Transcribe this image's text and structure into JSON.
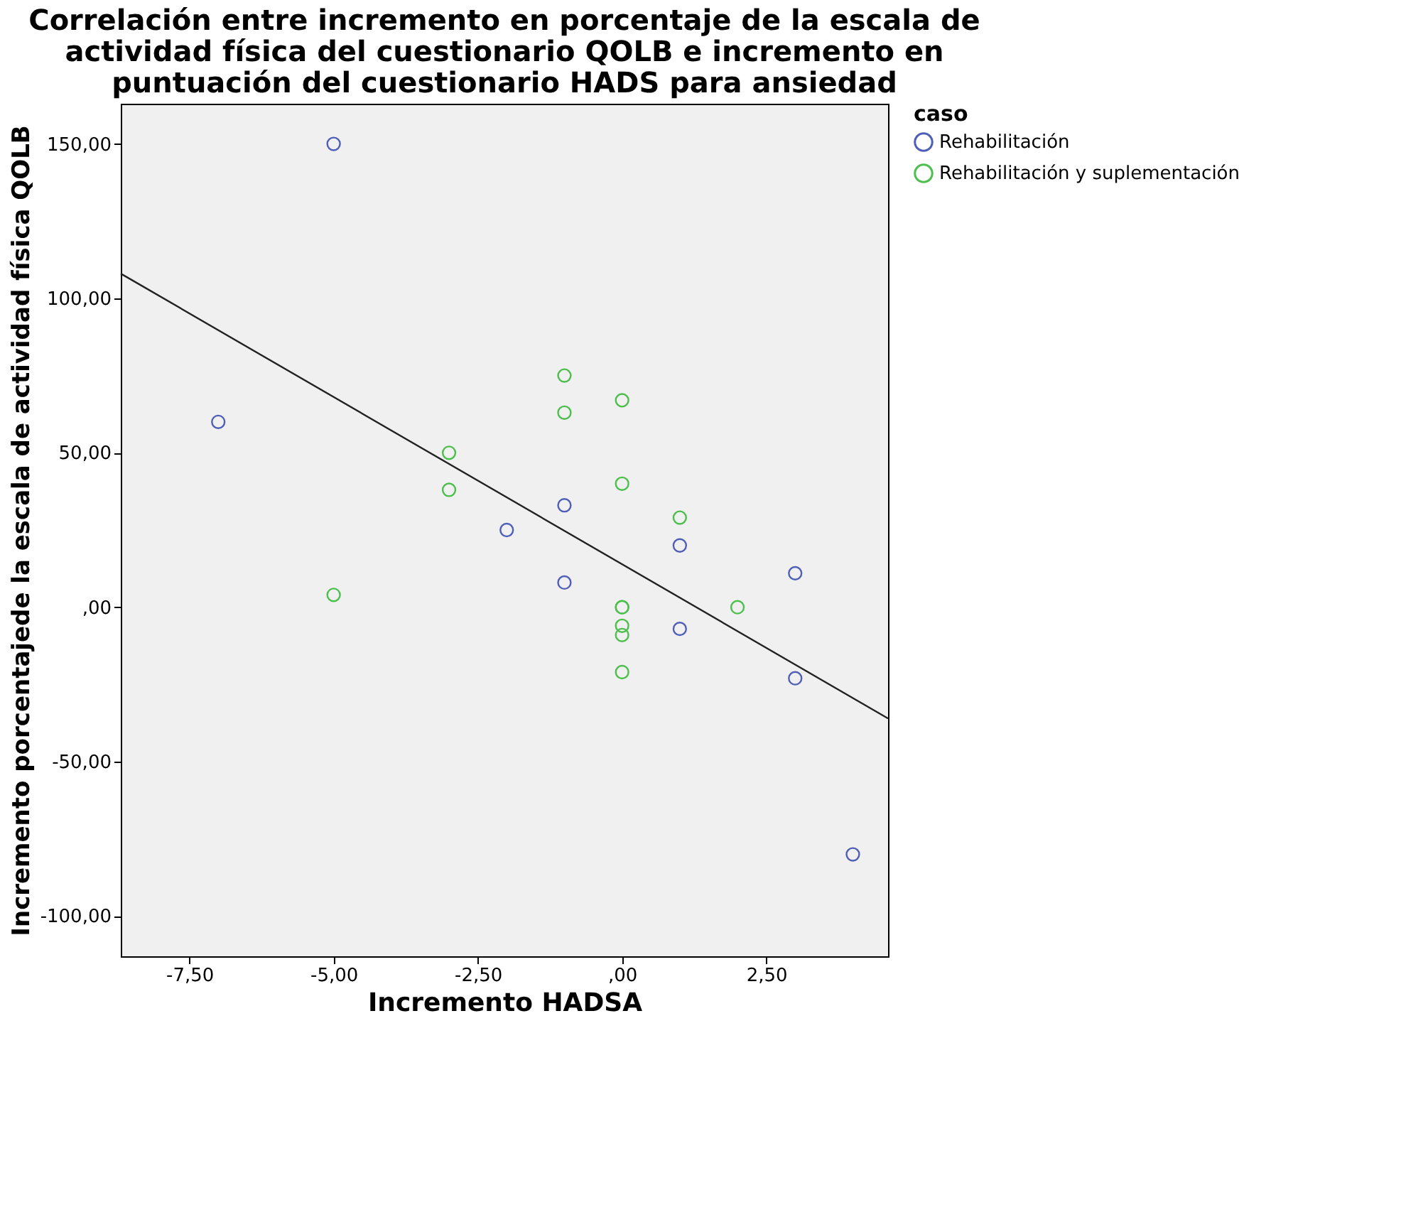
{
  "chart_data": {
    "type": "scatter",
    "title": "Correlación entre incremento en porcentaje de la escala de actividad física del cuestionario QOLB e incremento en puntuación del cuestionario HADS para ansiedad",
    "xlabel": "Incremento HADSA",
    "ylabel": "Incremento porcentajede la escala de actividad física QOLB",
    "legend_title": "caso",
    "legend": "top right",
    "grid": false,
    "marker": "circle",
    "xlim": [
      -8.69,
      4.61
    ],
    "ylim": [
      -113,
      163
    ],
    "xticks": [
      {
        "value": -7.5,
        "label": "-7,50"
      },
      {
        "value": -5,
        "label": "-5,00"
      },
      {
        "value": -2.5,
        "label": "-2,50"
      },
      {
        "value": 0,
        "label": ",00"
      },
      {
        "value": 2.5,
        "label": "2,50"
      }
    ],
    "yticks": [
      {
        "value": -100,
        "label": "-100,00"
      },
      {
        "value": -50,
        "label": "-50,00"
      },
      {
        "value": 0,
        "label": ",00"
      },
      {
        "value": 50,
        "label": "50,00"
      },
      {
        "value": 100,
        "label": "100,00"
      },
      {
        "value": 150,
        "label": "150,00"
      }
    ],
    "series": [
      {
        "name": "Rehabilitación",
        "color": "#4f5fb8",
        "x": [
          -5,
          -7,
          -2,
          -1,
          -1,
          1,
          1,
          3,
          3,
          4
        ],
        "values": [
          150,
          60,
          25,
          33,
          8,
          20,
          -7,
          11,
          -23,
          -80
        ]
      },
      {
        "name": "Rehabilitación y suplementación",
        "color": "#4cbf4c",
        "x": [
          -5,
          -3,
          -3,
          -1,
          -1,
          0,
          0,
          1,
          2,
          0,
          0,
          0,
          0,
          0
        ],
        "values": [
          4,
          50,
          38,
          75,
          63,
          67,
          40,
          29,
          0,
          0,
          0,
          -6,
          -9,
          -21
        ]
      },
      {
        "type": "line",
        "color": "#222222",
        "line_style": "solid",
        "marker": "none",
        "x": [
          -8.69,
          4.61
        ],
        "values": [
          108,
          -36
        ]
      }
    ]
  }
}
